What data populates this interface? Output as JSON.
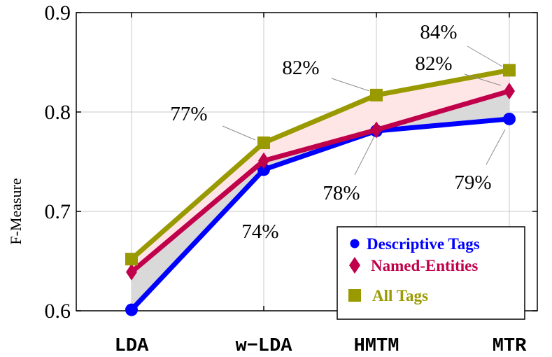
{
  "chart_data": {
    "type": "line",
    "ylabel": "F-Measure",
    "xlabel": "",
    "categories": [
      "LDA",
      "w−LDA",
      "HMTM",
      "MTR"
    ],
    "ylim": [
      0.6,
      0.9
    ],
    "yticks": [
      "0.6",
      "0.7",
      "0.8",
      "0.9"
    ],
    "grid": true,
    "legend_position": "bottom-right",
    "series": [
      {
        "name": "Descriptive Tags",
        "color": "#0000ff",
        "marker": "circle",
        "values": [
          0.601,
          0.742,
          0.781,
          0.793
        ]
      },
      {
        "name": "Named-Entities",
        "color": "#c0004b",
        "marker": "diamond",
        "values": [
          0.639,
          0.751,
          0.782,
          0.821
        ]
      },
      {
        "name": "All Tags",
        "color": "#999900",
        "marker": "square",
        "values": [
          0.652,
          0.769,
          0.817,
          0.842
        ]
      }
    ],
    "fills": [
      {
        "between": [
          0,
          1
        ],
        "color": "#d9d9d9"
      },
      {
        "between": [
          1,
          2
        ],
        "color": "#ffe6e6"
      }
    ],
    "annotations": [
      {
        "text": "77%",
        "series": 2,
        "index": 1
      },
      {
        "text": "74%",
        "series": 0,
        "index": 1
      },
      {
        "text": "82%",
        "series": 2,
        "index": 2
      },
      {
        "text": "78%",
        "series": 0,
        "index": 2
      },
      {
        "text": "84%",
        "series": 2,
        "index": 3
      },
      {
        "text": "82%",
        "series": 1,
        "index": 3
      },
      {
        "text": "79%",
        "series": 0,
        "index": 3
      }
    ]
  }
}
